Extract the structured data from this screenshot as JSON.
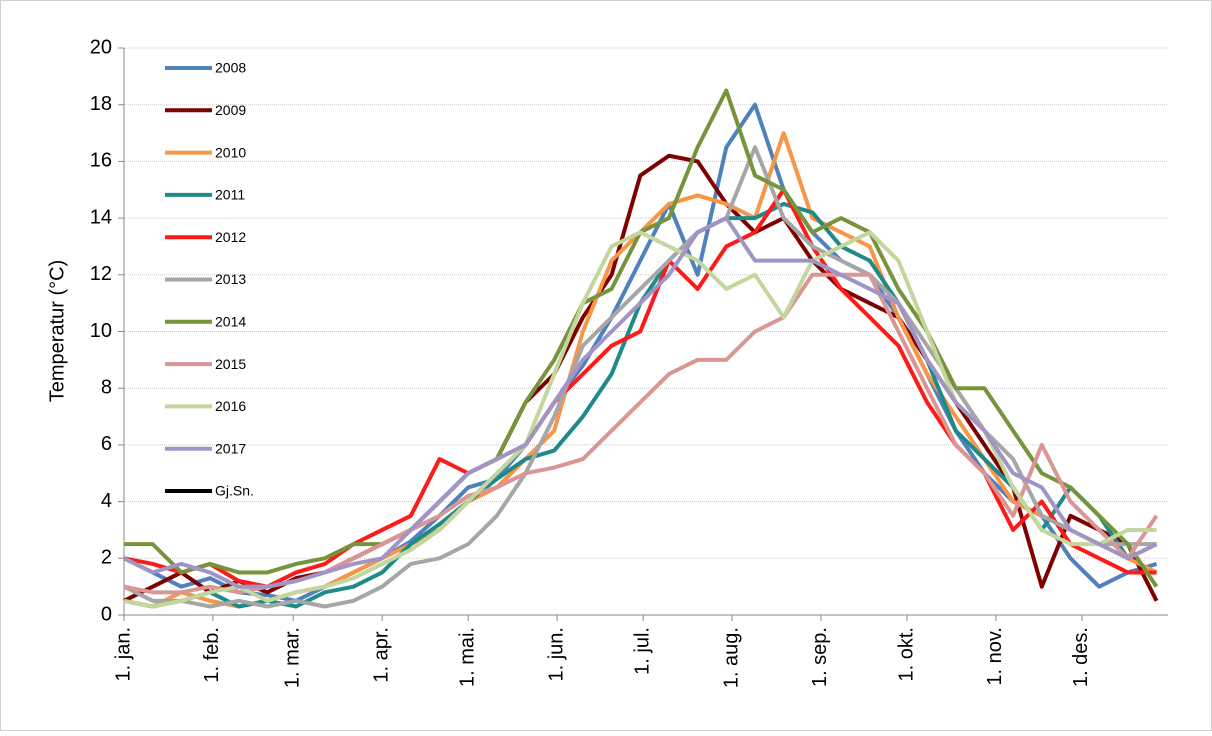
{
  "chart_data": {
    "type": "line",
    "y_label": "Temperatur (°C)",
    "x": [
      1,
      11,
      21,
      31,
      41,
      51,
      61,
      71,
      81,
      91,
      101,
      111,
      121,
      131,
      141,
      151,
      161,
      171,
      181,
      191,
      201,
      211,
      221,
      231,
      241,
      251,
      261,
      271,
      281,
      291,
      301,
      311,
      321,
      331,
      341,
      351,
      361
    ],
    "xlim": [
      1,
      365
    ],
    "xticks": [
      {
        "value": 1,
        "label": "1. jan."
      },
      {
        "value": 32,
        "label": "1. feb."
      },
      {
        "value": 60,
        "label": "1. mar."
      },
      {
        "value": 91,
        "label": "1. apr."
      },
      {
        "value": 121,
        "label": "1. mai."
      },
      {
        "value": 152,
        "label": "1. jun."
      },
      {
        "value": 182,
        "label": "1. jul."
      },
      {
        "value": 213,
        "label": "1. aug."
      },
      {
        "value": 244,
        "label": "1. sep."
      },
      {
        "value": 274,
        "label": "1. okt."
      },
      {
        "value": 305,
        "label": "1. nov."
      },
      {
        "value": 335,
        "label": "1. des."
      }
    ],
    "ylim": [
      0,
      20
    ],
    "yticks": [
      0,
      2,
      4,
      6,
      8,
      10,
      12,
      14,
      16,
      18,
      20
    ],
    "grid": true,
    "legend": "upper left",
    "series": [
      {
        "name": "2008",
        "color": "#4f81bd",
        "values": [
          2.0,
          1.5,
          1.0,
          1.3,
          0.8,
          0.7,
          0.5,
          1.0,
          1.5,
          2.0,
          2.6,
          3.5,
          4.5,
          4.8,
          6.0,
          7.5,
          8.8,
          10.5,
          12.5,
          14.5,
          12.0,
          16.5,
          18.0,
          15.0,
          13.5,
          12.5,
          12.0,
          10.5,
          8.5,
          6.5,
          5.0,
          4.0,
          3.5,
          2.0,
          1.0,
          1.5,
          1.8
        ]
      },
      {
        "name": "2009",
        "color": "#7f0000",
        "values": [
          0.5,
          1.0,
          1.5,
          0.8,
          1.2,
          0.8,
          1.3,
          1.5,
          2.0,
          2.5,
          3.0,
          4.0,
          5.0,
          5.5,
          7.5,
          8.5,
          10.5,
          12.0,
          15.5,
          16.2,
          16.0,
          14.5,
          13.5,
          14.0,
          12.5,
          11.5,
          11.0,
          10.5,
          9.0,
          7.5,
          6.0,
          4.5,
          1.0,
          3.5,
          3.0,
          2.5,
          0.5
        ]
      },
      {
        "name": "2010",
        "color": "#f79646",
        "values": [
          0.5,
          0.3,
          0.8,
          0.5,
          0.3,
          0.5,
          0.8,
          1.0,
          1.5,
          2.0,
          2.5,
          3.0,
          4.0,
          4.5,
          5.5,
          6.5,
          10.0,
          12.5,
          13.5,
          14.5,
          14.8,
          14.5,
          14.0,
          17.0,
          14.0,
          13.5,
          13.0,
          10.5,
          8.5,
          7.0,
          5.5,
          4.0,
          3.5,
          3.0,
          2.5,
          2.0,
          1.5
        ]
      },
      {
        "name": "2011",
        "color": "#1f8a8a",
        "values": [
          0.5,
          0.3,
          0.5,
          0.8,
          0.3,
          0.5,
          0.3,
          0.8,
          1.0,
          1.5,
          2.5,
          3.2,
          4.0,
          4.8,
          5.5,
          5.8,
          7.0,
          8.5,
          11.0,
          12.5,
          13.5,
          14.0,
          14.0,
          14.5,
          14.2,
          13.0,
          12.5,
          11.0,
          9.0,
          6.5,
          5.5,
          4.5,
          3.0,
          4.5,
          3.5,
          2.0,
          2.5
        ]
      },
      {
        "name": "2012",
        "color": "#ff1a1a",
        "values": [
          2.0,
          1.8,
          1.5,
          1.8,
          1.2,
          1.0,
          1.5,
          1.8,
          2.5,
          3.0,
          3.5,
          5.5,
          5.0,
          5.5,
          6.0,
          7.5,
          8.5,
          9.5,
          10.0,
          12.5,
          11.5,
          13.0,
          13.5,
          15.0,
          13.0,
          11.5,
          10.5,
          9.5,
          7.5,
          6.0,
          5.0,
          3.0,
          4.0,
          2.5,
          2.0,
          1.5,
          1.5
        ]
      },
      {
        "name": "2013",
        "color": "#a6a6a6",
        "values": [
          1.0,
          0.5,
          0.5,
          0.3,
          0.5,
          0.3,
          0.5,
          0.3,
          0.5,
          1.0,
          1.8,
          2.0,
          2.5,
          3.5,
          5.0,
          7.0,
          9.5,
          10.5,
          11.5,
          12.5,
          13.5,
          14.0,
          16.5,
          14.0,
          13.0,
          12.5,
          12.0,
          11.0,
          9.5,
          8.0,
          6.5,
          5.5,
          3.5,
          3.0,
          2.5,
          2.5,
          2.5
        ]
      },
      {
        "name": "2014",
        "color": "#77933c",
        "values": [
          2.5,
          2.5,
          1.5,
          1.8,
          1.5,
          1.5,
          1.8,
          2.0,
          2.5,
          2.5,
          3.0,
          4.0,
          5.0,
          5.5,
          7.5,
          9.0,
          11.0,
          11.5,
          13.5,
          14.0,
          16.5,
          18.5,
          15.5,
          15.0,
          13.5,
          14.0,
          13.5,
          11.5,
          10.0,
          8.0,
          8.0,
          6.5,
          5.0,
          4.5,
          3.5,
          2.5,
          1.0
        ]
      },
      {
        "name": "2015",
        "color": "#d99694",
        "values": [
          1.0,
          0.8,
          0.8,
          1.0,
          0.8,
          1.0,
          1.2,
          1.5,
          2.0,
          2.5,
          3.0,
          3.5,
          4.2,
          4.5,
          5.0,
          5.2,
          5.5,
          6.5,
          7.5,
          8.5,
          9.0,
          9.0,
          10.0,
          10.5,
          12.0,
          12.0,
          12.0,
          10.0,
          8.0,
          6.0,
          5.0,
          3.5,
          6.0,
          4.0,
          3.0,
          2.0,
          3.5
        ]
      },
      {
        "name": "2016",
        "color": "#c3d69b",
        "values": [
          0.5,
          0.3,
          0.5,
          0.8,
          1.0,
          0.5,
          0.8,
          1.0,
          1.3,
          1.8,
          2.3,
          3.0,
          4.0,
          5.0,
          6.0,
          8.5,
          11.0,
          13.0,
          13.5,
          13.0,
          12.5,
          11.5,
          12.0,
          10.5,
          12.5,
          13.0,
          13.5,
          12.5,
          10.0,
          7.5,
          6.5,
          4.5,
          3.0,
          2.5,
          2.5,
          3.0,
          3.0
        ]
      },
      {
        "name": "2017",
        "color": "#a095c4",
        "values": [
          2.0,
          1.5,
          1.8,
          1.5,
          1.0,
          1.0,
          1.2,
          1.5,
          1.8,
          2.0,
          3.0,
          4.0,
          5.0,
          5.5,
          6.0,
          7.5,
          9.0,
          10.0,
          11.0,
          12.0,
          13.5,
          14.0,
          12.5,
          12.5,
          12.5,
          12.0,
          11.5,
          11.0,
          9.0,
          7.5,
          6.5,
          5.0,
          4.5,
          3.0,
          2.5,
          2.0,
          2.5
        ]
      },
      {
        "name": "Gj.Sn.",
        "color": "#000000",
        "values": [
          null,
          null,
          null,
          null,
          null,
          null,
          null,
          null,
          null,
          null,
          null,
          null,
          null,
          null,
          null,
          null,
          null,
          null,
          null,
          null,
          null,
          null,
          null,
          null,
          null,
          null,
          null,
          null,
          null,
          null,
          null,
          null,
          null,
          null,
          null,
          null,
          null
        ]
      }
    ]
  }
}
